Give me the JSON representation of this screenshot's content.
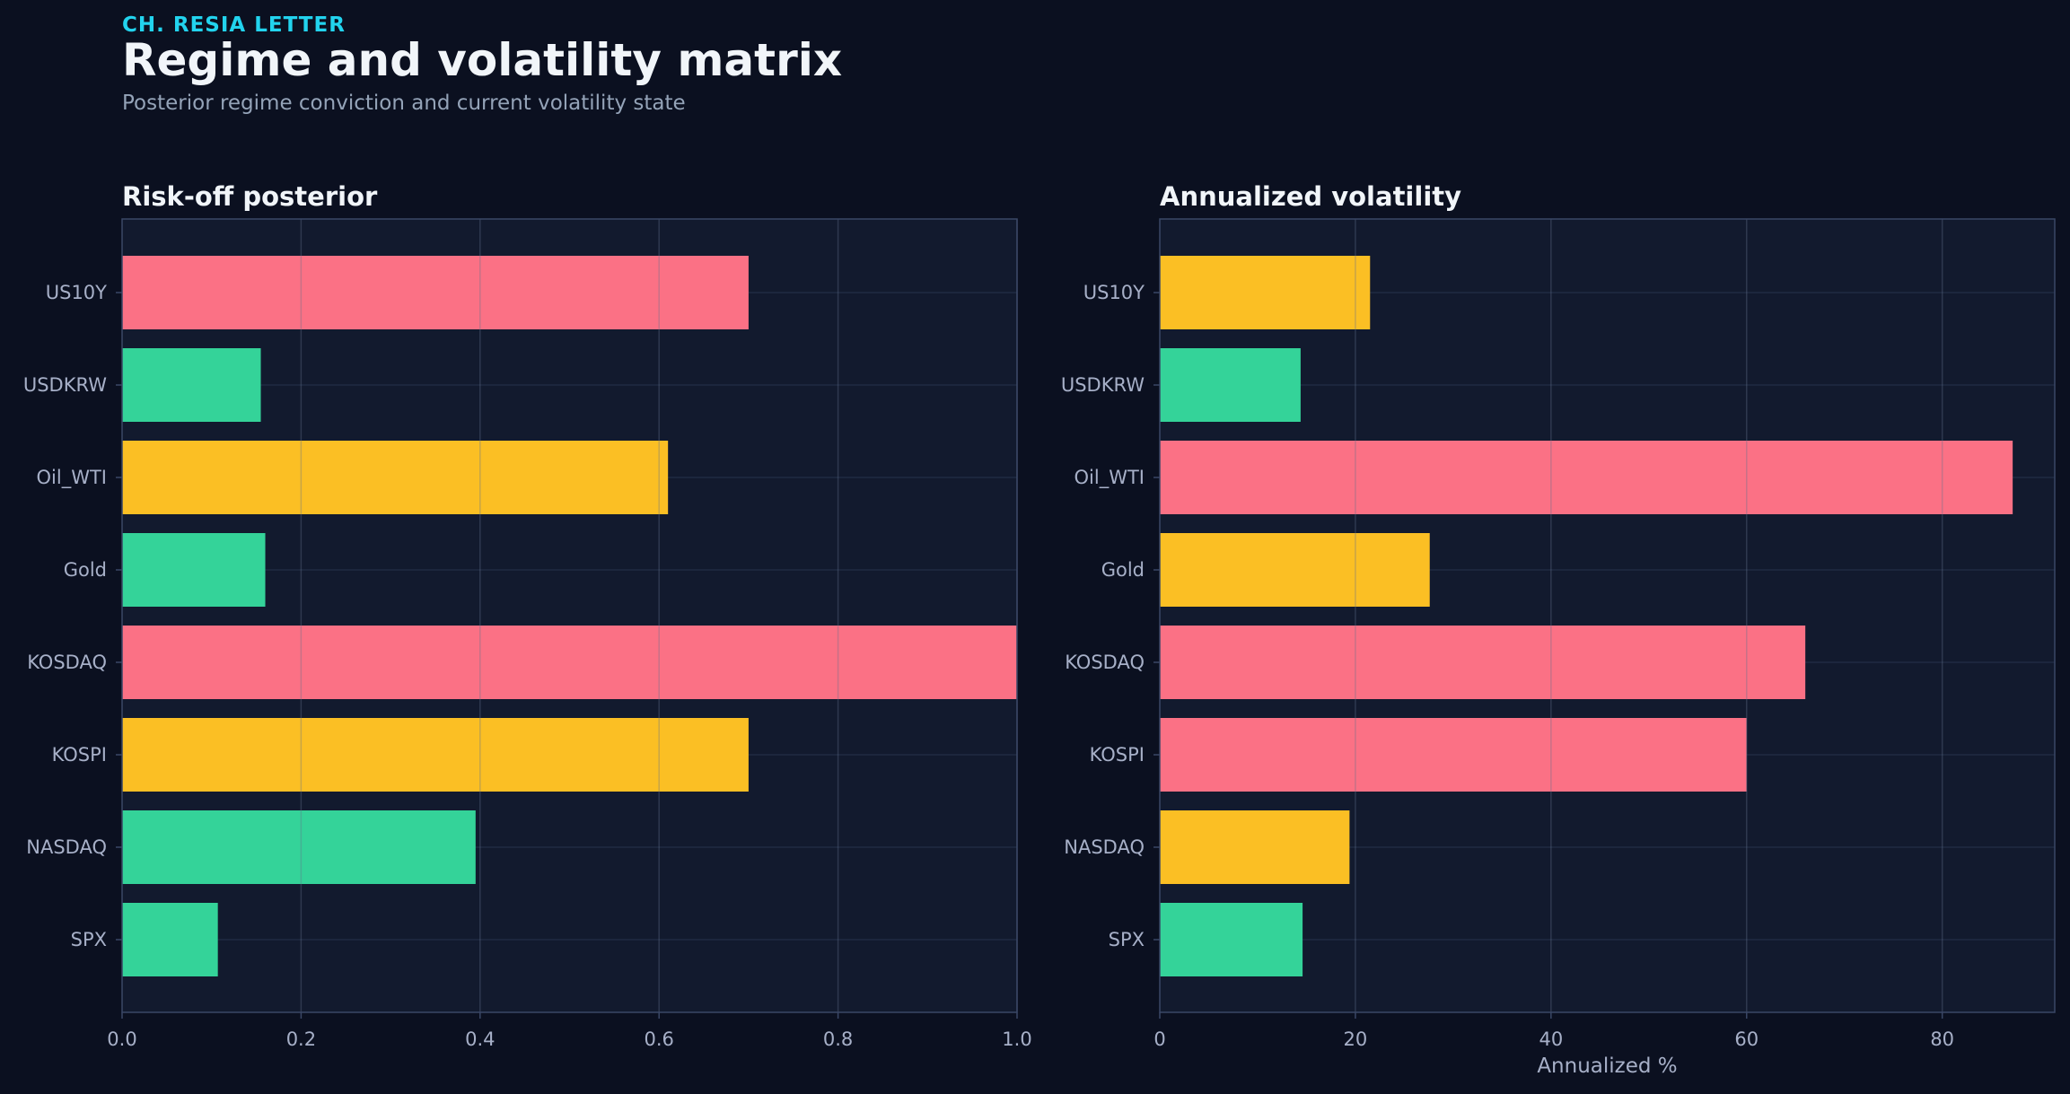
{
  "header": {
    "kicker": "CH. RESIA LETTER",
    "title": "Regime and volatility matrix",
    "subtitle": "Posterior regime conviction and current volatility state"
  },
  "colors": {
    "background": "#0b1020",
    "plot_bg": "#121a2e",
    "red": "#fb7185",
    "amber": "#fbbf24",
    "green": "#34d399",
    "kicker": "#22d3ee"
  },
  "chart_data": [
    {
      "type": "bar",
      "orientation": "horizontal",
      "title": "Risk-off posterior",
      "xlabel": "",
      "ylabel": "",
      "categories": [
        "US10Y",
        "USDKRW",
        "Oil_WTI",
        "Gold",
        "KOSDAQ",
        "KOSPI",
        "NASDAQ",
        "SPX"
      ],
      "values": [
        0.7,
        0.155,
        0.61,
        0.16,
        1.0,
        0.7,
        0.395,
        0.107
      ],
      "bar_colors": [
        "red",
        "green",
        "amber",
        "green",
        "red",
        "amber",
        "green",
        "green"
      ],
      "xlim": [
        0,
        1.0
      ],
      "xticks": [
        "0.0",
        "0.2",
        "0.4",
        "0.6",
        "0.8",
        "1.0"
      ],
      "xtick_values": [
        0,
        0.2,
        0.4,
        0.6,
        0.8,
        1.0
      ],
      "grid": true
    },
    {
      "type": "bar",
      "orientation": "horizontal",
      "title": "Annualized volatility",
      "xlabel": "Annualized %",
      "ylabel": "",
      "categories": [
        "US10Y",
        "USDKRW",
        "Oil_WTI",
        "Gold",
        "KOSDAQ",
        "KOSPI",
        "NASDAQ",
        "SPX"
      ],
      "values": [
        21.5,
        14.4,
        87.2,
        27.6,
        66.0,
        60.0,
        19.4,
        14.6
      ],
      "bar_colors": [
        "amber",
        "green",
        "red",
        "amber",
        "red",
        "red",
        "amber",
        "green"
      ],
      "xlim": [
        0,
        91.5
      ],
      "xticks": [
        "0",
        "20",
        "40",
        "60",
        "80"
      ],
      "xtick_values": [
        0,
        20,
        40,
        60,
        80
      ],
      "grid": true
    }
  ]
}
